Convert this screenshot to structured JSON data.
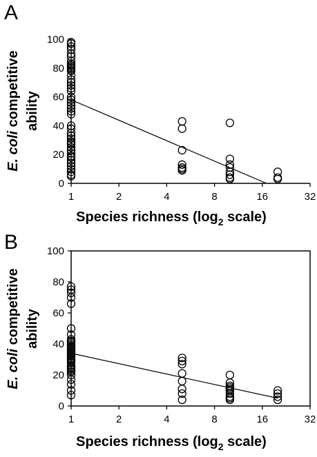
{
  "chart_data": [
    {
      "type": "scatter",
      "panel_label": "A",
      "frame": false,
      "xlabel_main": "Species richness (log",
      "xlabel_sub": "2",
      "xlabel_end": " scale)",
      "ylabel_italic": "E. coli",
      "ylabel_rest": " competitive",
      "ylabel_line2": "ability",
      "x_scale": "log2",
      "xlim": [
        1,
        32
      ],
      "ylim": [
        0,
        100
      ],
      "xticks": [
        1,
        2,
        4,
        8,
        16,
        32
      ],
      "yticks": [
        0,
        20,
        40,
        60,
        80,
        100
      ],
      "grid": false,
      "x": [
        1,
        1,
        1,
        1,
        1,
        1,
        1,
        1,
        1,
        1,
        1,
        1,
        1,
        1,
        1,
        1,
        1,
        1,
        1,
        1,
        1,
        1,
        1,
        1,
        1,
        1,
        1,
        1,
        1,
        1,
        1,
        1,
        1,
        1,
        1,
        1,
        1,
        1,
        1,
        1,
        1,
        1,
        1,
        1,
        1,
        1,
        5,
        5,
        5,
        5,
        5,
        5,
        5,
        10,
        10,
        10,
        10,
        10,
        10,
        10,
        10,
        20,
        20,
        20
      ],
      "y": [
        98,
        97,
        95,
        93,
        90,
        88,
        85,
        83,
        82,
        81,
        80,
        79,
        78,
        75,
        72,
        70,
        68,
        66,
        64,
        60,
        58,
        56,
        54,
        52,
        50,
        48,
        40,
        38,
        35,
        33,
        31,
        29,
        28,
        27,
        25,
        23,
        21,
        19,
        18,
        16,
        14,
        12,
        10,
        8,
        6,
        5,
        43,
        38,
        23,
        13,
        11,
        10,
        9,
        42,
        17,
        13,
        11,
        8,
        6,
        4,
        3,
        8,
        4,
        3
      ],
      "trendline": {
        "x": [
          1,
          17
        ],
        "y": [
          58,
          0
        ]
      }
    },
    {
      "type": "scatter",
      "panel_label": "B",
      "frame": true,
      "xlabel_main": "Species richness (log",
      "xlabel_sub": "2",
      "xlabel_end": " scale)",
      "ylabel_italic": "E. coli",
      "ylabel_rest": " competitive",
      "ylabel_line2": "ability",
      "x_scale": "log2",
      "xlim": [
        1,
        32
      ],
      "ylim": [
        0,
        100
      ],
      "xticks": [
        1,
        2,
        4,
        8,
        16,
        32
      ],
      "yticks": [
        0,
        20,
        40,
        60,
        80,
        100
      ],
      "grid": false,
      "x": [
        1,
        1,
        1,
        1,
        1,
        1,
        1,
        1,
        1,
        1,
        1,
        1,
        1,
        1,
        1,
        1,
        1,
        1,
        1,
        1,
        1,
        1,
        1,
        1,
        1,
        1,
        1,
        1,
        1,
        1,
        1,
        1,
        1,
        5,
        5,
        5,
        5,
        5,
        5,
        5,
        5,
        10,
        10,
        10,
        10,
        10,
        10,
        10,
        10,
        10,
        10,
        20,
        20,
        20,
        20
      ],
      "y": [
        77,
        75,
        73,
        70,
        66,
        50,
        46,
        43,
        42,
        41,
        40,
        39,
        38,
        37,
        36,
        35,
        34,
        33,
        32,
        31,
        30,
        29,
        28,
        26,
        25,
        24,
        23,
        22,
        20,
        17,
        14,
        10,
        7,
        31,
        29,
        27,
        21,
        16,
        11,
        8,
        4,
        20,
        15,
        13,
        12,
        11,
        10,
        8,
        6,
        5,
        4,
        10,
        8,
        6,
        4
      ],
      "trendline": {
        "x": [
          1,
          20
        ],
        "y": [
          34,
          5
        ]
      }
    }
  ]
}
